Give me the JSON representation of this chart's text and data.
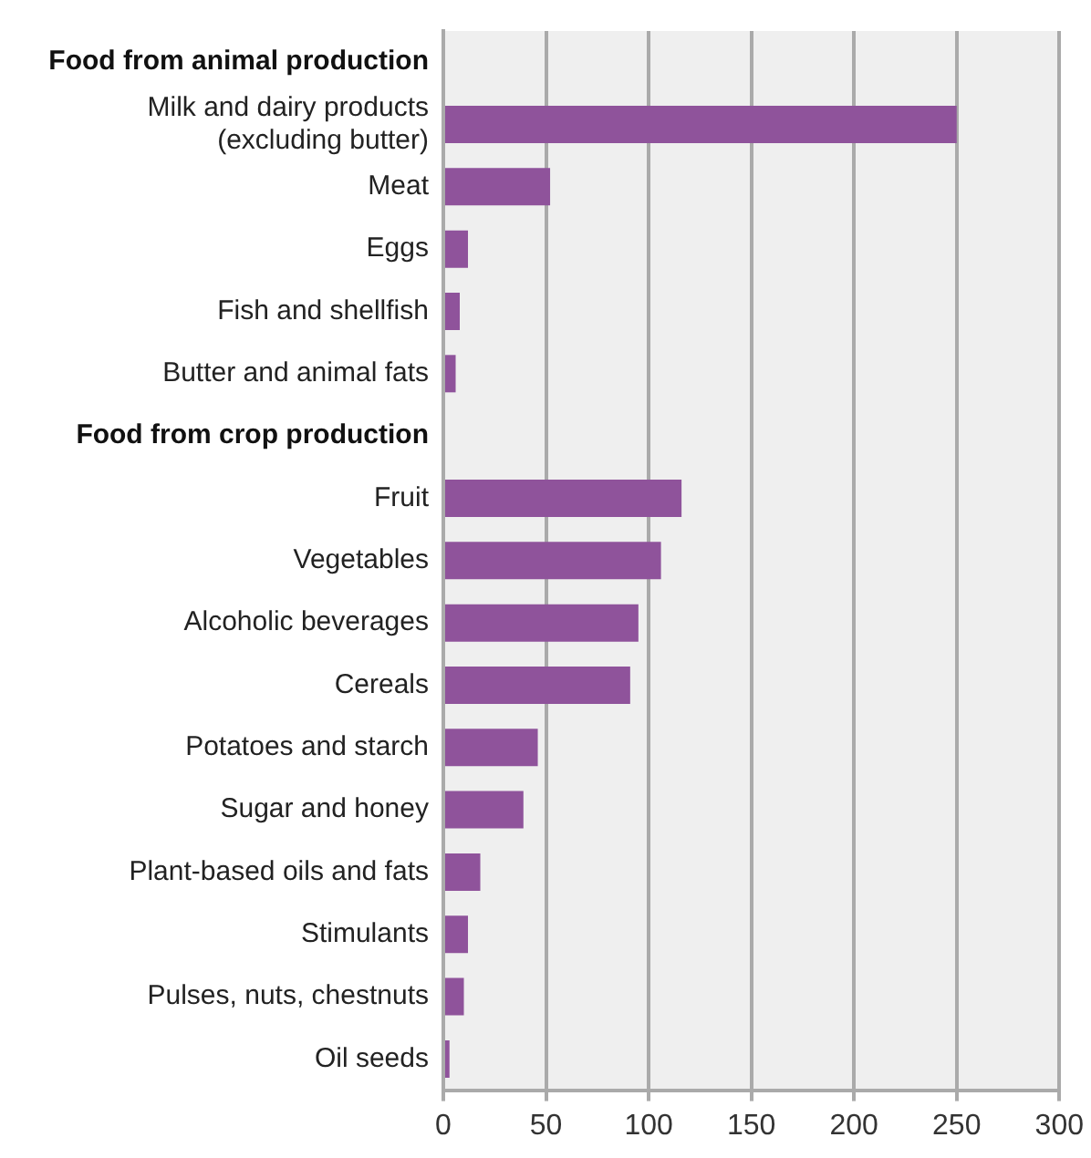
{
  "chart_data": {
    "type": "bar",
    "orientation": "horizontal",
    "categories": [
      "Food from animal production",
      "Milk and dairy products (excluding butter)",
      "Meat",
      "Eggs",
      "Fish and shellfish",
      "Butter and animal fats",
      "Food from crop production",
      "Fruit",
      "Vegetables",
      "Alcoholic beverages",
      "Cereals",
      "Potatoes and starch",
      "Sugar and honey",
      "Plant-based oils and fats",
      "Stimulants",
      "Pulses, nuts, chestnuts",
      "Oil seeds"
    ],
    "values": [
      null,
      250,
      52,
      12,
      8,
      6,
      null,
      116,
      106,
      95,
      91,
      46,
      39,
      18,
      12,
      10,
      3
    ],
    "color": "#8f539b",
    "xlim": [
      0,
      300
    ],
    "xticks": [
      0,
      50,
      100,
      150,
      200,
      250,
      300
    ],
    "grid": "x",
    "legend": false
  }
}
